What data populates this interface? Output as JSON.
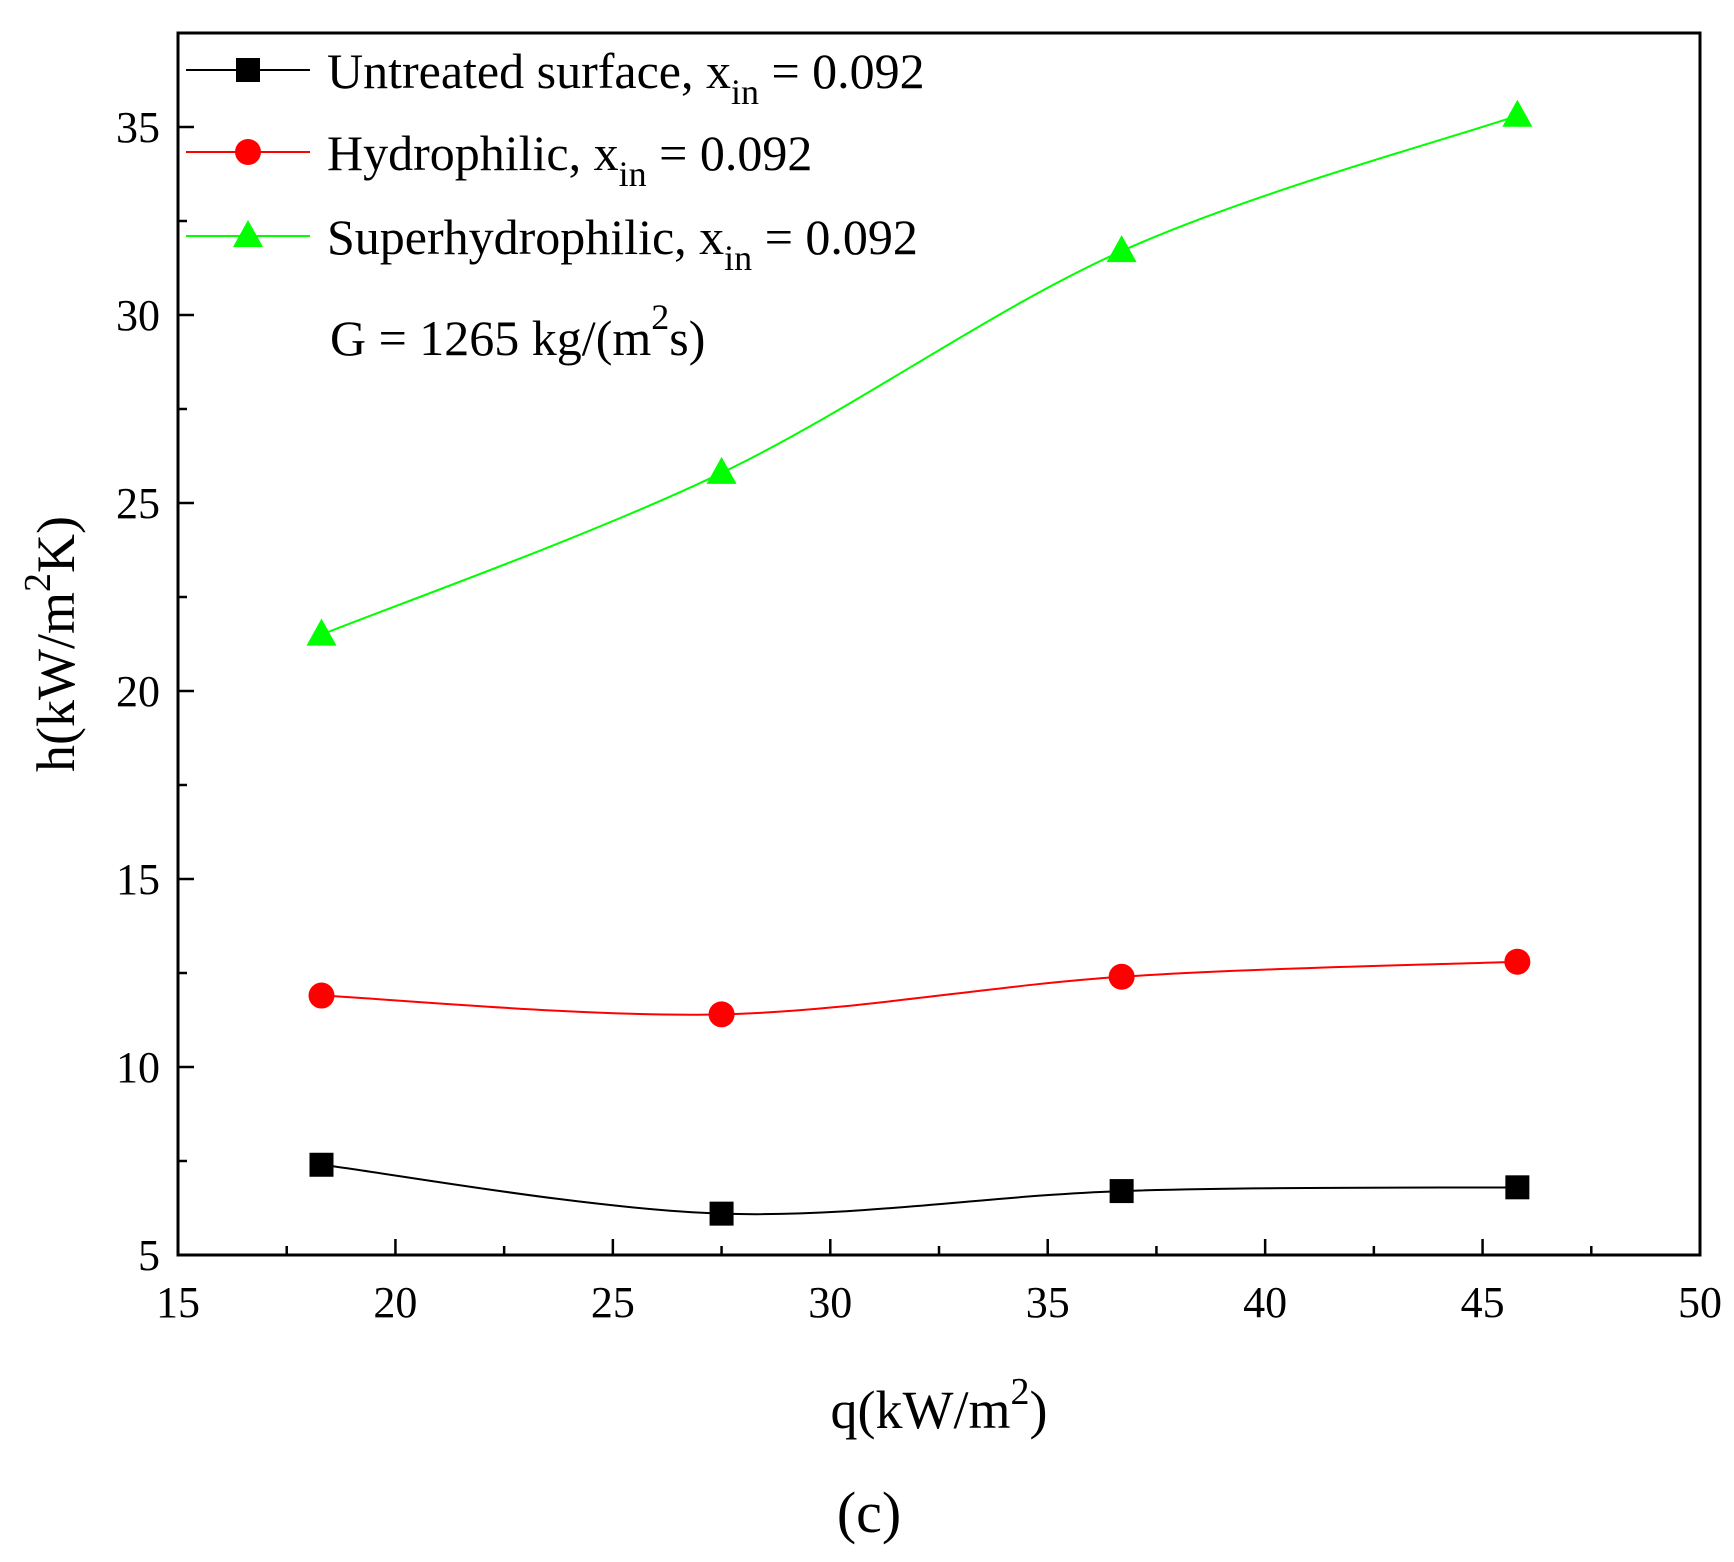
{
  "chart_data": {
    "type": "line",
    "title": "",
    "xlabel": {
      "main": "q(kW/m",
      "sup": "2",
      "tail": ")"
    },
    "ylabel": {
      "main": "h(kW/m",
      "sup": "2",
      "tail": "K)"
    },
    "xlim": [
      15,
      50
    ],
    "ylim": [
      5,
      37.5
    ],
    "x_ticks": [
      15,
      20,
      25,
      30,
      35,
      40,
      45,
      50
    ],
    "y_ticks": [
      5,
      10,
      15,
      20,
      25,
      30,
      35
    ],
    "x_tick_labels": [
      "15",
      "20",
      "25",
      "30",
      "35",
      "40",
      "45",
      "50"
    ],
    "y_tick_labels": [
      "5",
      "10",
      "15",
      "20",
      "25",
      "30",
      "35"
    ],
    "grid": false,
    "legend_position": "top-left",
    "annotation": {
      "main": "G = 1265 kg/(m",
      "sup": "2",
      "tail": "s)"
    },
    "panel_label": "(c)",
    "x": [
      18.3,
      27.5,
      36.7,
      45.8
    ],
    "series": [
      {
        "name_main": "Untreated surface, x",
        "name_sub": "in",
        "name_tail": " = 0.092",
        "values": [
          7.4,
          6.1,
          6.7,
          6.8
        ],
        "color": "#000000",
        "marker": "square"
      },
      {
        "name_main": "Hydrophilic, x",
        "name_sub": "in",
        "name_tail": " = 0.092",
        "values": [
          11.9,
          11.4,
          12.4,
          12.8
        ],
        "color": "#ff0000",
        "marker": "circle"
      },
      {
        "name_main": "Superhydrophilic, x",
        "name_sub": "in",
        "name_tail": " = 0.092",
        "values": [
          21.5,
          25.8,
          31.7,
          35.3
        ],
        "color": "#00ff00",
        "marker": "triangle"
      }
    ]
  }
}
